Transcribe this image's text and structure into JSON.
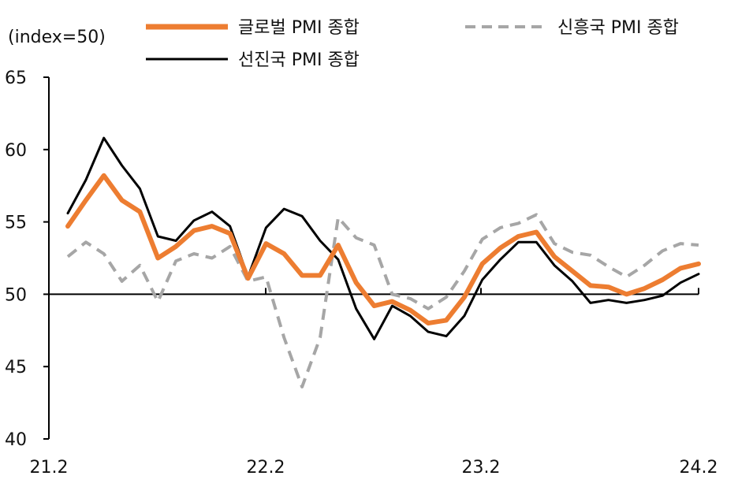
{
  "chart_data": {
    "type": "line",
    "ylabel": "(index=50)",
    "ylim": [
      40,
      65
    ],
    "yticks": [
      "40",
      "45",
      "50",
      "55",
      "60",
      "65"
    ],
    "x_tick_labels": [
      "21.2",
      "22.2",
      "23.2",
      "24.2"
    ],
    "x_tick_positions": [
      0,
      12,
      24,
      36
    ],
    "reference_line": 50,
    "legend_position": "top",
    "series": [
      {
        "name": "글로벌 PMI 종합",
        "color": "#ED7D31",
        "style": "solid-thick",
        "values": [
          54.7,
          56.5,
          58.2,
          56.5,
          55.7,
          52.5,
          53.3,
          54.4,
          54.7,
          54.2,
          51.1,
          53.5,
          52.8,
          51.3,
          51.3,
          53.4,
          50.8,
          49.2,
          49.5,
          48.9,
          48.0,
          48.2,
          49.8,
          52.1,
          53.2,
          54.0,
          54.3,
          52.6,
          51.6,
          50.6,
          50.5,
          50.0,
          50.4,
          51.0,
          51.8,
          52.1
        ]
      },
      {
        "name": "선진국 PMI 종합",
        "color": "#000000",
        "style": "solid",
        "values": [
          55.6,
          57.9,
          60.8,
          58.9,
          57.3,
          54.0,
          53.7,
          55.1,
          55.7,
          54.7,
          51.2,
          54.6,
          55.9,
          55.4,
          53.7,
          52.4,
          49.0,
          46.9,
          49.2,
          48.5,
          47.4,
          47.1,
          48.5,
          51.0,
          52.4,
          53.6,
          53.6,
          52.0,
          50.9,
          49.4,
          49.6,
          49.4,
          49.6,
          49.9,
          50.8,
          51.4
        ]
      },
      {
        "name": "신흥국 PMI 종합",
        "color": "#A6A6A6",
        "style": "dashed",
        "values": [
          52.6,
          53.6,
          52.8,
          50.9,
          52.0,
          49.5,
          52.3,
          52.8,
          52.5,
          53.3,
          50.9,
          51.2,
          47.0,
          43.6,
          47.0,
          55.3,
          53.9,
          53.4,
          50.0,
          49.7,
          49.0,
          49.8,
          51.6,
          53.8,
          54.6,
          54.9,
          55.5,
          53.5,
          52.9,
          52.7,
          51.9,
          51.2,
          52.0,
          53.0,
          53.5,
          53.4
        ]
      }
    ]
  }
}
